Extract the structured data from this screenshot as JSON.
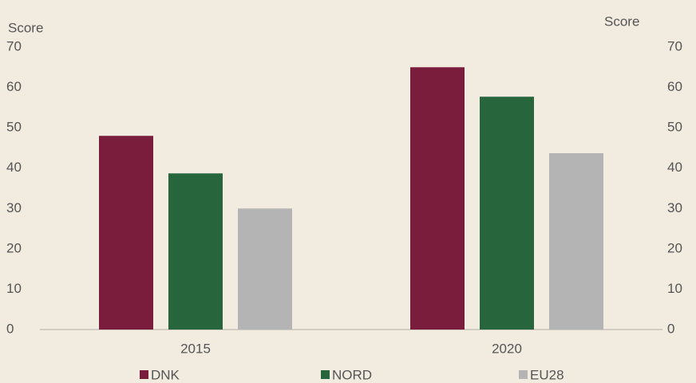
{
  "chart_data": {
    "type": "bar",
    "y_label": "Score",
    "y2_label": "Score",
    "categories": [
      "2015",
      "2020"
    ],
    "series": [
      {
        "name": "DNK",
        "color": "#7a1c3b",
        "values": [
          48,
          65
        ]
      },
      {
        "name": "NORD",
        "color": "#27663c",
        "values": [
          38.7,
          57.7
        ]
      },
      {
        "name": "EU28",
        "color": "#b4b4b4",
        "values": [
          30,
          43.7
        ]
      }
    ],
    "ylim": [
      0,
      70
    ],
    "yticks": [
      0,
      10,
      20,
      30,
      40,
      50,
      60,
      70
    ],
    "y2lim": [
      0,
      70
    ],
    "y2ticks": [
      0,
      10,
      20,
      30,
      40,
      50,
      60,
      70
    ],
    "grid": false,
    "legend": "bottom"
  }
}
